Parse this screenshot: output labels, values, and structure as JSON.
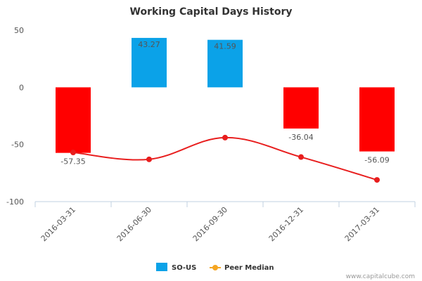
{
  "chart_data": {
    "type": "bar",
    "title": "Working Capital Days History",
    "categories": [
      "2016-03-31",
      "2016-06-30",
      "2016-09-30",
      "2016-12-31",
      "2017-03-31"
    ],
    "series": [
      {
        "name": "SO-US",
        "type": "bar",
        "values": [
          -57.35,
          43.27,
          41.59,
          -36.04,
          -56.09
        ],
        "labels": [
          "-57.35",
          "43.27",
          "41.59",
          "-36.04",
          "-56.09"
        ],
        "positive_color": "#0ba2e8",
        "negative_color": "#ff0000"
      },
      {
        "name": "Peer Median",
        "type": "line",
        "values": [
          -57,
          -63,
          -44,
          -61,
          -81
        ],
        "color": "#e81e1e",
        "legend_marker_color": "#f5a623"
      }
    ],
    "y_ticks": [
      "50",
      "0",
      "-50",
      "-100"
    ],
    "ylim": [
      -100,
      50
    ],
    "grid": false,
    "legend_position": "bottom-center"
  },
  "credit": "www.capitalcube.com"
}
